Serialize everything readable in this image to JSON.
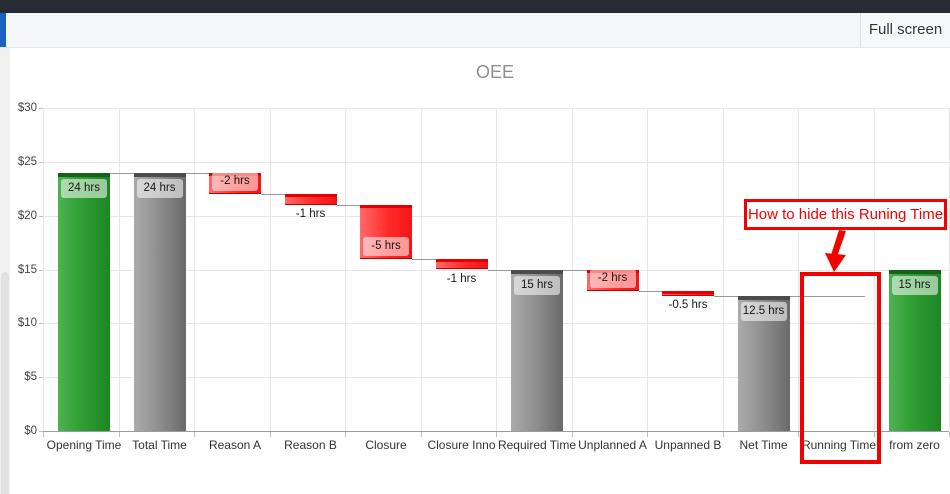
{
  "window": {
    "topbar_color": "#272b33",
    "accent_color": "#1863c0"
  },
  "toolbar": {
    "fullscreen_label": "Full screen"
  },
  "chart_data": {
    "type": "bar",
    "subtype": "waterfall",
    "title": "OEE",
    "xlabel": "",
    "ylabel": "",
    "ylim": [
      0,
      30
    ],
    "grid": true,
    "legend": false,
    "yticks": [
      {
        "label": "$0",
        "value": 0
      },
      {
        "label": "$5",
        "value": 5
      },
      {
        "label": "$10",
        "value": 10
      },
      {
        "label": "$15",
        "value": 15
      },
      {
        "label": "$20",
        "value": 20
      },
      {
        "label": "$25",
        "value": 25
      },
      {
        "label": "$30",
        "value": 30
      }
    ],
    "categories": [
      "Opening Time",
      "Total Time",
      "Reason A",
      "Reason B",
      "Closure",
      "Closure Inno",
      "Required Time",
      "Unplanned A",
      "Unpanned B",
      "Net Time",
      "Running Time",
      "from zero"
    ],
    "bars": [
      {
        "category": "Opening Time",
        "value": 24,
        "start": 0,
        "end": 24,
        "label": "24 hrs",
        "color": "green",
        "label_position": "inside-top",
        "connector_after": true
      },
      {
        "category": "Total Time",
        "value": 24,
        "start": 0,
        "end": 24,
        "label": "24 hrs",
        "color": "gray",
        "label_position": "inside-top",
        "connector_after": true
      },
      {
        "category": "Reason A",
        "value": -2,
        "start": 24,
        "end": 22,
        "label": "-2 hrs",
        "color": "red",
        "label_position": "inside-bottom",
        "connector_after": true
      },
      {
        "category": "Reason B",
        "value": -1,
        "start": 22,
        "end": 21,
        "label": "-1 hrs",
        "color": "red",
        "label_position": "below",
        "connector_after": true
      },
      {
        "category": "Closure",
        "value": -5,
        "start": 21,
        "end": 16,
        "label": "-5 hrs",
        "color": "red",
        "label_position": "inside-bottom",
        "connector_after": true
      },
      {
        "category": "Closure Inno",
        "value": -1,
        "start": 16,
        "end": 15,
        "label": "-1 hrs",
        "color": "red",
        "label_position": "below",
        "connector_after": true
      },
      {
        "category": "Required Time",
        "value": 15,
        "start": 0,
        "end": 15,
        "label": "15 hrs",
        "color": "gray",
        "label_position": "inside-top",
        "connector_after": true
      },
      {
        "category": "Unplanned A",
        "value": -2,
        "start": 15,
        "end": 13,
        "label": "-2 hrs",
        "color": "red",
        "label_position": "inside-bottom",
        "connector_after": true
      },
      {
        "category": "Unpanned B",
        "value": -0.5,
        "start": 13,
        "end": 12.5,
        "label": "-0.5 hrs",
        "color": "red",
        "label_position": "below",
        "connector_after": true
      },
      {
        "category": "Net Time",
        "value": 12.5,
        "start": 0,
        "end": 12.5,
        "label": "12.5 hrs",
        "color": "gray",
        "label_position": "inside-top",
        "connector_after": true
      },
      {
        "category": "Running Time",
        "value": 0,
        "start": 12.5,
        "end": 12.5,
        "label": "",
        "color": "none",
        "label_position": "none",
        "connector_after": false
      },
      {
        "category": "from zero",
        "value": 15,
        "start": 0,
        "end": 15,
        "label": "15 hrs",
        "color": "green",
        "label_position": "inside-top",
        "connector_after": false
      }
    ],
    "colors": {
      "positive_green": "#2f9e33",
      "total_gray": "#808080",
      "negative_red": "#ff3333",
      "connector": "#999999"
    }
  },
  "annotation": {
    "text": "How to hide this Runing Time",
    "color": "#f40000",
    "highlighted_category": "Running Time"
  }
}
